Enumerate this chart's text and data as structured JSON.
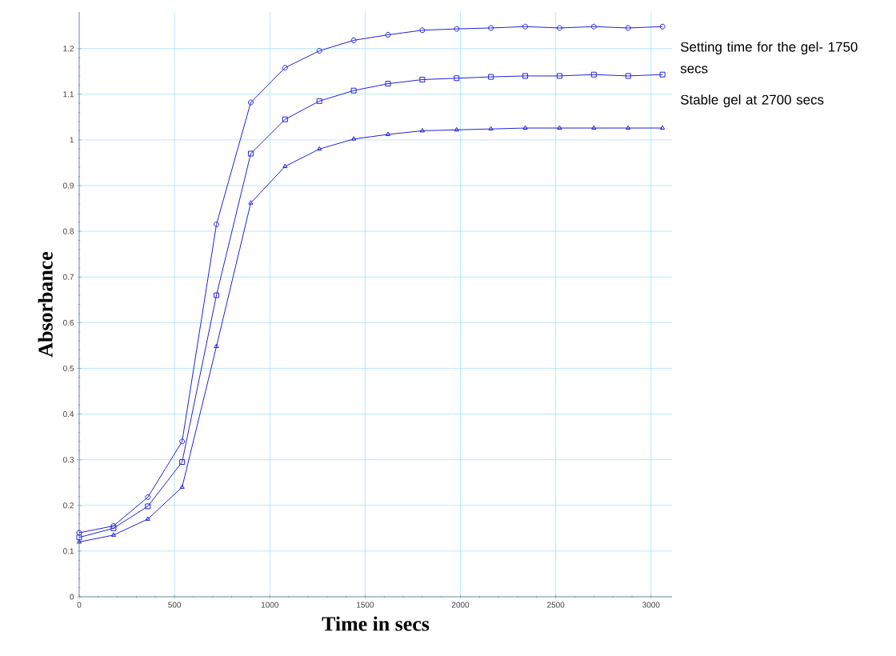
{
  "chart_data": {
    "type": "line",
    "xlabel": "Time in secs",
    "ylabel": "Absorbance",
    "x": [
      0,
      180,
      360,
      540,
      720,
      900,
      1080,
      1260,
      1440,
      1620,
      1800,
      1980,
      2160,
      2340,
      2520,
      2700,
      2880,
      3060
    ],
    "series": [
      {
        "color": "#2222dd",
        "marker": "circle",
        "values": [
          0.14,
          0.155,
          0.218,
          0.34,
          0.815,
          1.082,
          1.158,
          1.195,
          1.218,
          1.23,
          1.24,
          1.243,
          1.245,
          1.248,
          1.245,
          1.248,
          1.245,
          1.248
        ]
      },
      {
        "color": "#2222dd",
        "marker": "square",
        "values": [
          0.13,
          0.15,
          0.198,
          0.295,
          0.66,
          0.97,
          1.045,
          1.085,
          1.108,
          1.123,
          1.132,
          1.135,
          1.138,
          1.14,
          1.14,
          1.143,
          1.14,
          1.143
        ]
      },
      {
        "color": "#2222dd",
        "marker": "triangle",
        "values": [
          0.12,
          0.135,
          0.17,
          0.24,
          0.548,
          0.862,
          0.942,
          0.98,
          1.002,
          1.012,
          1.02,
          1.022,
          1.024,
          1.026,
          1.026,
          1.026,
          1.026,
          1.026
        ]
      }
    ],
    "xlim": [
      0,
      3110
    ],
    "ylim": [
      0,
      1.28
    ],
    "xticks": [
      0,
      500,
      1000,
      1500,
      2000,
      2500,
      3000
    ],
    "yticks": [
      0,
      0.1,
      0.2,
      0.3,
      0.4,
      0.5,
      0.6,
      0.7,
      0.8,
      0.9,
      1,
      1.1,
      1.2
    ],
    "grid": true,
    "line_style": "solid",
    "annotations": [
      "Setting time for the gel- 1750 secs",
      "Stable gel at 2700 secs"
    ]
  }
}
